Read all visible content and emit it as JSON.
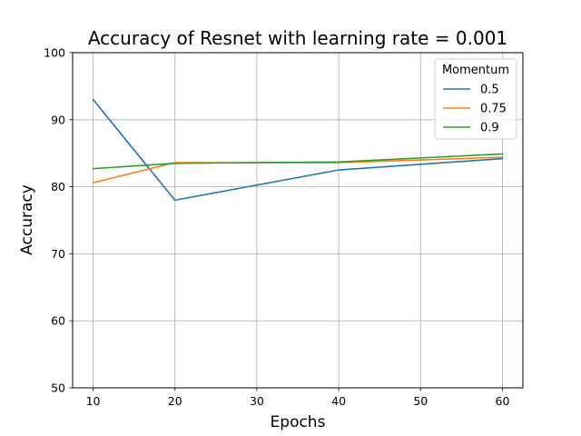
{
  "chart_data": {
    "type": "line",
    "title": "Accuracy of Resnet with learning rate = 0.001",
    "xlabel": "Epochs",
    "ylabel": "Accuracy",
    "xlim": [
      7.5,
      62.5
    ],
    "ylim": [
      50,
      100
    ],
    "xticks": [
      "10",
      "20",
      "30",
      "40",
      "50",
      "60"
    ],
    "yticks": [
      "50",
      "60",
      "70",
      "80",
      "90",
      "100"
    ],
    "grid": true,
    "legend": {
      "title": "Momentum",
      "placement": "top-right"
    },
    "x": [
      10,
      20,
      40,
      60
    ],
    "series": [
      {
        "name": "0.5",
        "color": "#1f77b4",
        "values": [
          93.0,
          78.0,
          82.5,
          84.2
        ]
      },
      {
        "name": "0.75",
        "color": "#ff7f0e",
        "values": [
          80.6,
          83.6,
          83.6,
          84.4
        ]
      },
      {
        "name": "0.9",
        "color": "#2ca02c",
        "values": [
          82.7,
          83.5,
          83.7,
          84.9
        ]
      }
    ]
  }
}
